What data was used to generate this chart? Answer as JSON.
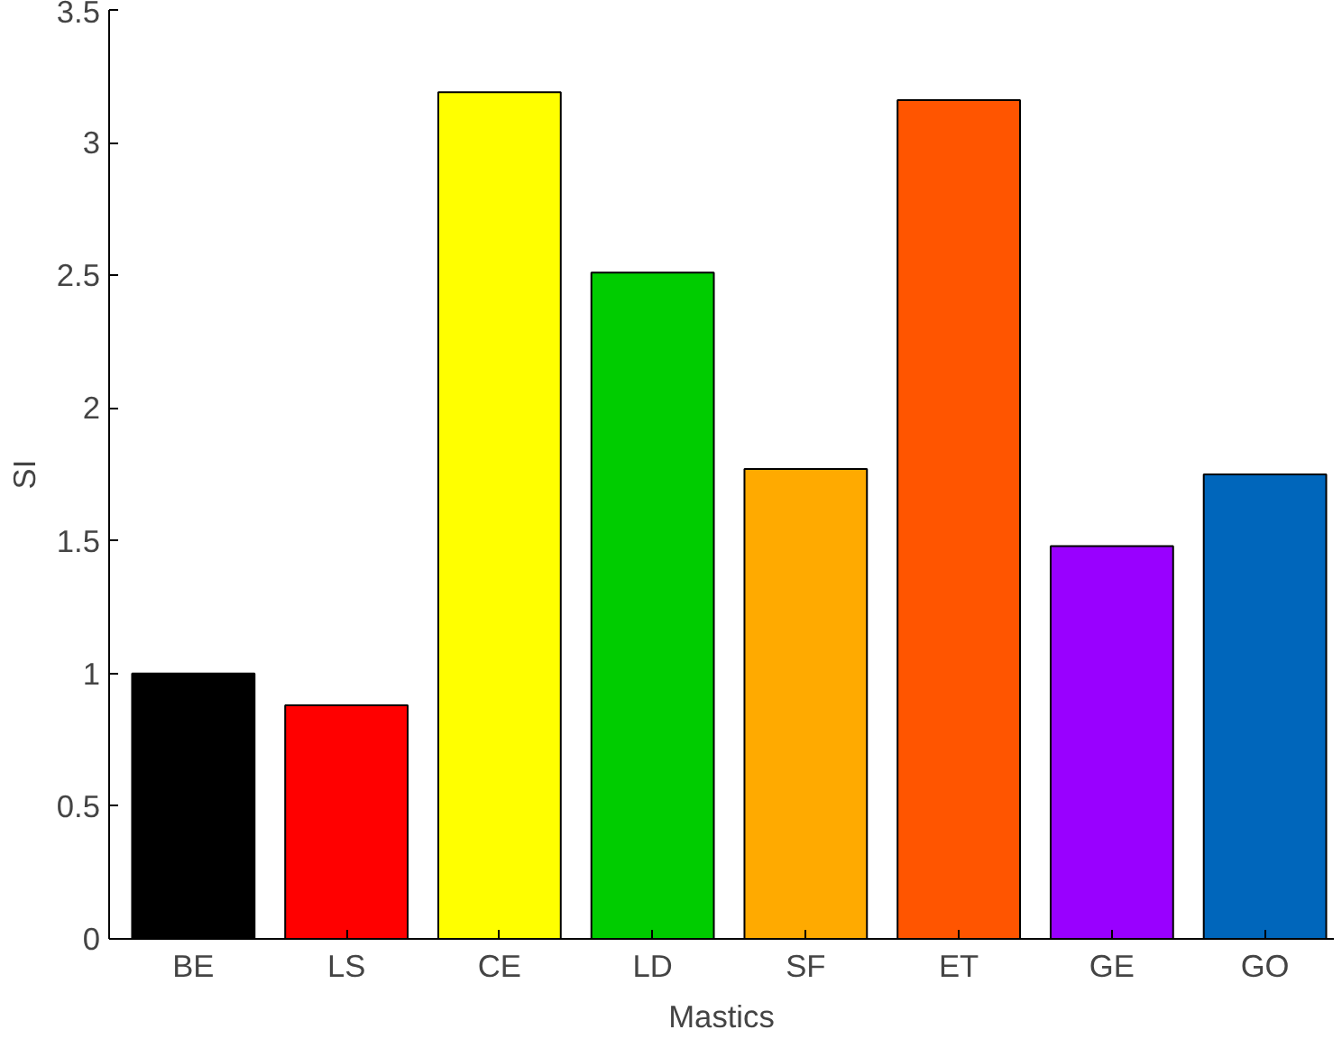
{
  "chart_data": {
    "type": "bar",
    "xlabel": "Mastics",
    "ylabel": "SI",
    "categories": [
      "BE",
      "LS",
      "CE",
      "LD",
      "SF",
      "ET",
      "GE",
      "GO"
    ],
    "values": [
      1.0,
      0.88,
      3.19,
      2.51,
      1.77,
      3.16,
      1.48,
      1.75
    ],
    "colors": [
      "#000000",
      "#ff0000",
      "#ffff00",
      "#00cc00",
      "#ffaa00",
      "#ff5500",
      "#9900ff",
      "#0066bb"
    ],
    "ylim": [
      0,
      3.5
    ],
    "yticks": [
      0,
      0.5,
      1,
      1.5,
      2,
      2.5,
      3,
      3.5
    ],
    "grid": false
  }
}
